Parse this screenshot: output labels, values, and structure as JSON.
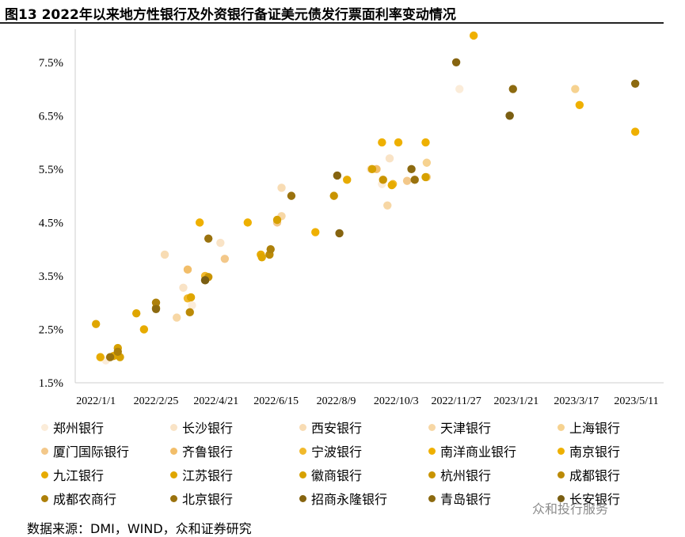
{
  "header": {
    "title": "图13 2022年以来地方性银行及外资银行备证美元债发行票面利率变动情况"
  },
  "source": "数据来源：DMI，WIND，众和证券研究",
  "watermark": "众和投行服务",
  "chart_data": {
    "type": "scatter",
    "title": "图13 2022年以来地方性银行及外资银行备证美元债发行票面利率变动情况",
    "xlabel": "",
    "ylabel": "",
    "x_ticks": [
      "2022/1/1",
      "2022/2/25",
      "2022/4/21",
      "2022/6/15",
      "2022/8/9",
      "2022/10/3",
      "2022/11/27",
      "2023/1/21",
      "2023/3/17",
      "2023/5/11"
    ],
    "xlim": [
      "2021/12/13",
      "2023/6/5"
    ],
    "ylim": [
      1.5,
      8.0
    ],
    "y_ticks": [
      "1.5%",
      "2.5%",
      "3.5%",
      "4.5%",
      "5.5%",
      "6.5%",
      "7.5%"
    ],
    "y_tick_values": [
      1.5,
      2.5,
      3.5,
      4.5,
      5.5,
      6.5,
      7.5
    ],
    "grid": false,
    "legend_position": "bottom",
    "series": [
      {
        "name": "郑州银行",
        "color": "#fbecd9",
        "points": [
          {
            "x": "2022/1/10",
            "y": 1.92
          },
          {
            "x": "2022/11/30",
            "y": 7.0
          },
          {
            "x": "2022/9/20",
            "y": 5.22
          },
          {
            "x": "2022/3/30",
            "y": 2.95
          }
        ]
      },
      {
        "name": "长沙银行",
        "color": "#f9e3c6",
        "points": [
          {
            "x": "2022/4/25",
            "y": 4.12
          },
          {
            "x": "2022/9/27",
            "y": 5.7
          },
          {
            "x": "2022/3/22",
            "y": 3.28
          }
        ]
      },
      {
        "name": "西安银行",
        "color": "#f8dcb4",
        "points": [
          {
            "x": "2022/6/20",
            "y": 5.15
          },
          {
            "x": "2022/9/10",
            "y": 5.5
          },
          {
            "x": "2022/3/5",
            "y": 3.9
          }
        ]
      },
      {
        "name": "天津银行",
        "color": "#f7d7a5",
        "points": [
          {
            "x": "2022/6/20",
            "y": 4.62
          },
          {
            "x": "2022/3/16",
            "y": 2.72
          },
          {
            "x": "2022/9/25",
            "y": 4.82
          }
        ]
      },
      {
        "name": "上海银行",
        "color": "#f6d290",
        "points": [
          {
            "x": "2022/10/31",
            "y": 5.62
          },
          {
            "x": "2022/10/31",
            "y": 5.35
          },
          {
            "x": "2023/3/16",
            "y": 7.0
          }
        ]
      },
      {
        "name": "厦门国际银行",
        "color": "#f3c88a",
        "points": [
          {
            "x": "2022/4/29",
            "y": 3.82
          },
          {
            "x": "2022/6/16",
            "y": 4.5
          },
          {
            "x": "2022/10/13",
            "y": 5.28
          }
        ]
      },
      {
        "name": "齐鲁银行",
        "color": "#f2be6a",
        "points": [
          {
            "x": "2022/3/26",
            "y": 3.62
          },
          {
            "x": "2022/9/15",
            "y": 5.5
          }
        ]
      },
      {
        "name": "宁波银行",
        "color": "#f1b92b",
        "points": [
          {
            "x": "2022/4/11",
            "y": 3.5
          },
          {
            "x": "2022/3/26",
            "y": 3.08
          },
          {
            "x": "2022/9/30",
            "y": 5.22
          }
        ]
      },
      {
        "name": "南洋商业银行",
        "color": "#efb000",
        "points": [
          {
            "x": "2022/7/21",
            "y": 4.32
          },
          {
            "x": "2022/4/6",
            "y": 4.5
          },
          {
            "x": "2022/12/13",
            "y": 8.0
          },
          {
            "x": "2023/3/20",
            "y": 6.7
          },
          {
            "x": "2023/5/10",
            "y": 6.2
          }
        ]
      },
      {
        "name": "南京银行",
        "color": "#eeb000",
        "points": [
          {
            "x": "2022/9/20",
            "y": 6.0
          },
          {
            "x": "2022/10/5",
            "y": 6.0
          },
          {
            "x": "2022/10/30",
            "y": 6.0
          },
          {
            "x": "2022/5/20",
            "y": 4.5
          }
        ]
      },
      {
        "name": "九江银行",
        "color": "#e7ab00",
        "points": [
          {
            "x": "2022/1/5",
            "y": 1.98
          },
          {
            "x": "2022/2/14",
            "y": 2.5
          },
          {
            "x": "2022/6/1",
            "y": 3.9
          },
          {
            "x": "2022/8/19",
            "y": 5.3
          },
          {
            "x": "2022/9/29",
            "y": 5.2
          }
        ]
      },
      {
        "name": "江苏银行",
        "color": "#dfa600",
        "points": [
          {
            "x": "2022/1/1",
            "y": 2.6
          },
          {
            "x": "2022/1/17",
            "y": 2.0
          },
          {
            "x": "2022/2/7",
            "y": 2.8
          },
          {
            "x": "2022/3/29",
            "y": 3.1
          },
          {
            "x": "2022/6/2",
            "y": 3.85
          }
        ]
      },
      {
        "name": "徽商银行",
        "color": "#d7a100",
        "points": [
          {
            "x": "2022/1/21",
            "y": 2.15
          },
          {
            "x": "2022/1/23",
            "y": 1.98
          },
          {
            "x": "2022/6/16",
            "y": 4.55
          },
          {
            "x": "2022/9/11",
            "y": 5.5
          },
          {
            "x": "2022/10/30",
            "y": 5.35
          }
        ]
      },
      {
        "name": "杭州银行",
        "color": "#c99400",
        "points": [
          {
            "x": "2022/2/25",
            "y": 2.9
          },
          {
            "x": "2022/8/7",
            "y": 5.0
          },
          {
            "x": "2022/4/14",
            "y": 3.48
          },
          {
            "x": "2022/9/21",
            "y": 5.3
          }
        ]
      },
      {
        "name": "成都银行",
        "color": "#bb8a06",
        "points": [
          {
            "x": "2022/3/28",
            "y": 2.82
          },
          {
            "x": "2022/4/11",
            "y": 3.42
          },
          {
            "x": "2022/6/9",
            "y": 3.9
          }
        ]
      },
      {
        "name": "成都农商行",
        "color": "#ad800a",
        "points": [
          {
            "x": "2022/1/21",
            "y": 2.08
          },
          {
            "x": "2022/2/25",
            "y": 3.0
          },
          {
            "x": "2022/6/10",
            "y": 4.0
          }
        ]
      },
      {
        "name": "北京银行",
        "color": "#9a720e",
        "points": [
          {
            "x": "2022/1/14",
            "y": 1.98
          },
          {
            "x": "2022/4/14",
            "y": 4.2
          },
          {
            "x": "2022/6/29",
            "y": 5.0
          },
          {
            "x": "2022/10/20",
            "y": 5.3
          }
        ]
      },
      {
        "name": "招商永隆银行",
        "color": "#866410",
        "points": [
          {
            "x": "2022/8/12",
            "y": 4.3
          },
          {
            "x": "2022/8/10",
            "y": 5.38
          },
          {
            "x": "2022/11/27",
            "y": 7.5
          },
          {
            "x": "2023/1/15",
            "y": 6.5
          }
        ]
      },
      {
        "name": "青岛银行",
        "color": "#8c6a10",
        "points": [
          {
            "x": "2022/2/25",
            "y": 2.88
          },
          {
            "x": "2022/10/17",
            "y": 5.5
          },
          {
            "x": "2023/1/18",
            "y": 7.0
          },
          {
            "x": "2023/5/10",
            "y": 7.1
          }
        ]
      },
      {
        "name": "长安银行",
        "color": "#7a5e12",
        "points": [
          {
            "x": "2022/4/11",
            "y": 3.42
          },
          {
            "x": "2023/1/15",
            "y": 6.5
          }
        ]
      }
    ]
  }
}
